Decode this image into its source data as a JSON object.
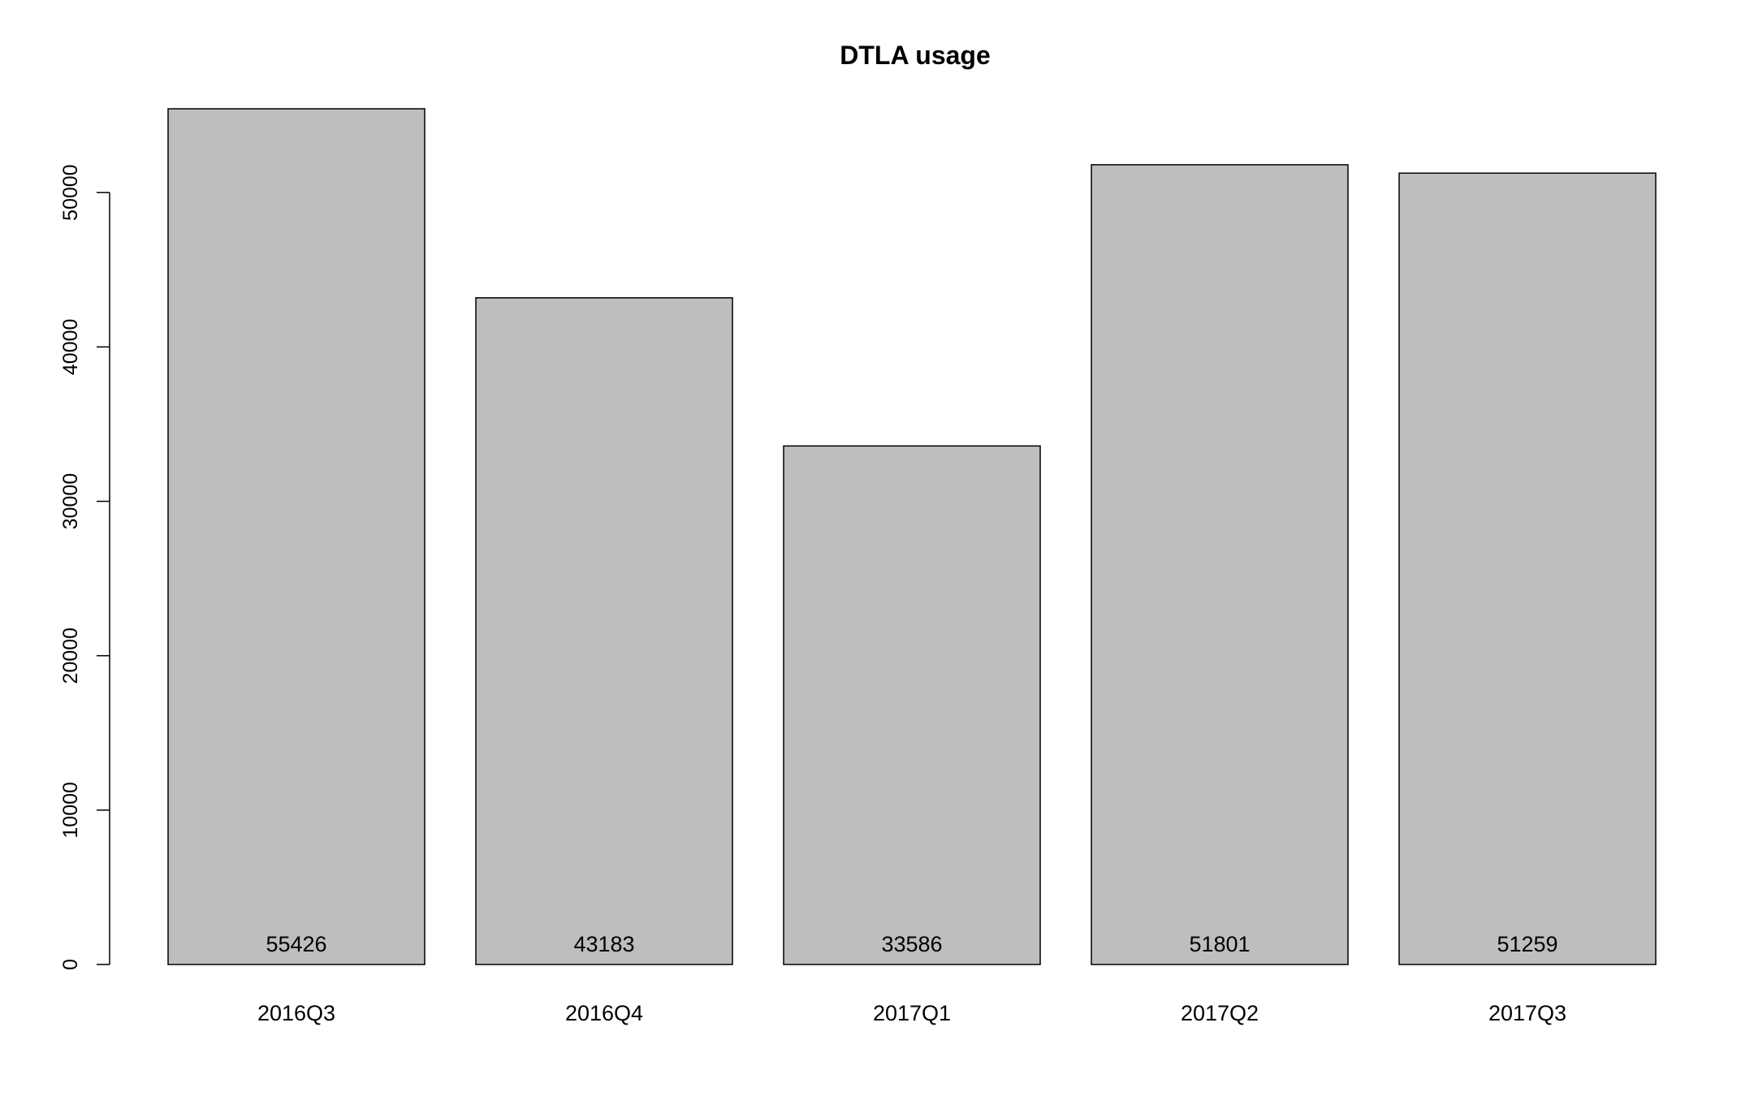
{
  "chart_data": {
    "type": "bar",
    "title": "DTLA usage",
    "xlabel": "",
    "ylabel": "",
    "categories": [
      "2016Q3",
      "2016Q4",
      "2017Q1",
      "2017Q2",
      "2017Q3"
    ],
    "values": [
      55426,
      43183,
      33586,
      51801,
      51259
    ],
    "data_labels": [
      "55426",
      "43183",
      "33586",
      "51801",
      "51259"
    ],
    "y_ticks": [
      0,
      10000,
      20000,
      30000,
      40000,
      50000
    ],
    "y_tick_labels": [
      "0",
      "10000",
      "20000",
      "30000",
      "40000",
      "50000"
    ],
    "ylim": [
      0,
      55426
    ],
    "grid": false,
    "legend": "none",
    "colors": {
      "bar_fill": "#bebebe",
      "bar_stroke": "#000000",
      "axis": "#000000",
      "text": "#000000"
    }
  }
}
